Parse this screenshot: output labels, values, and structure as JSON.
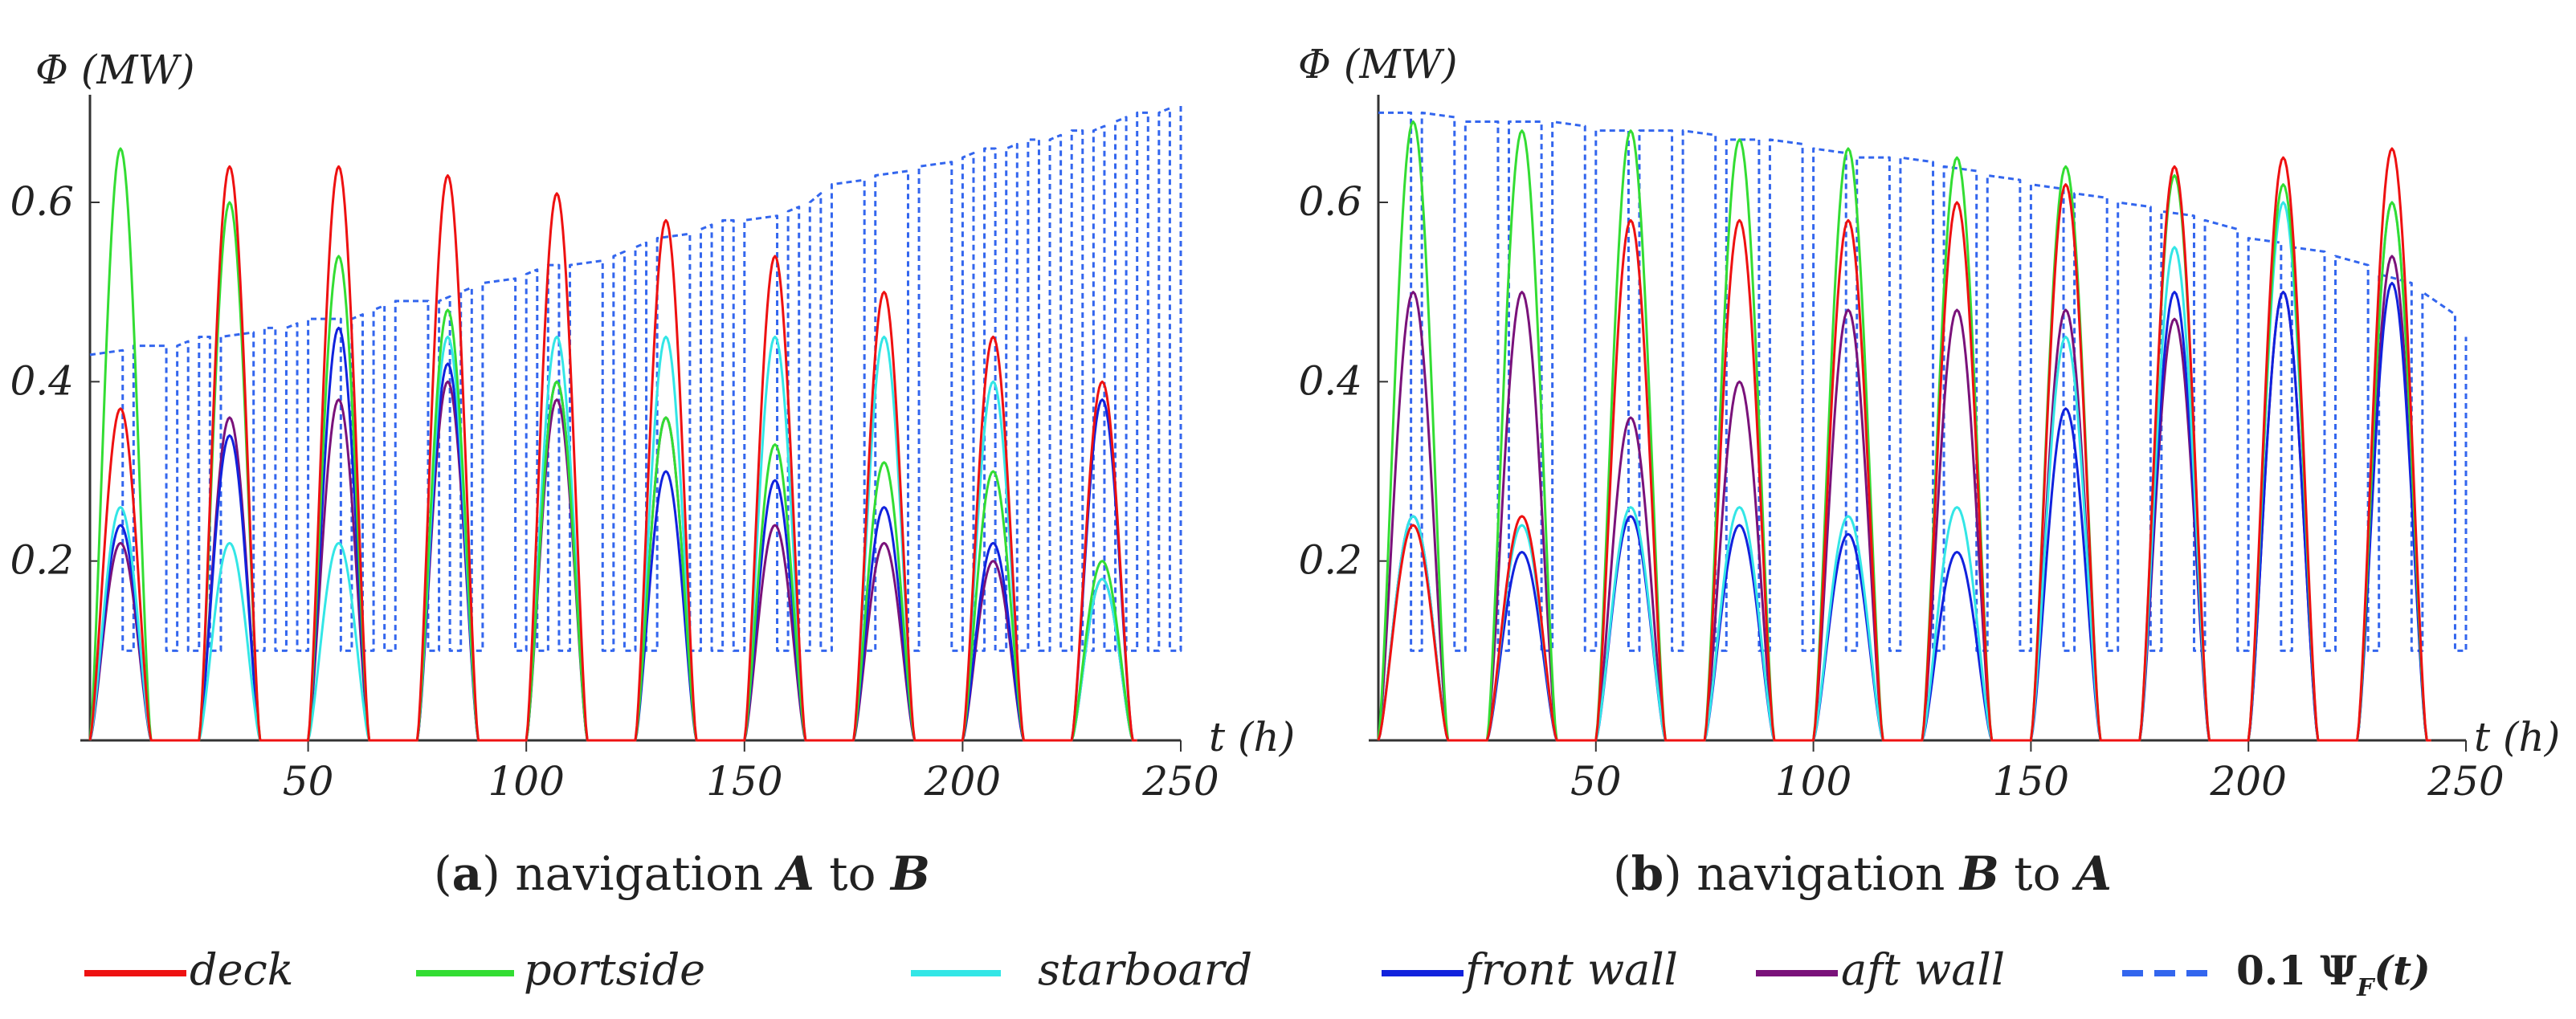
{
  "chart_data": [
    {
      "type": "line",
      "caption": {
        "letter": "a",
        "text": "navigation",
        "from": "A",
        "to_word": "to",
        "dest": "B"
      },
      "ylabel": "Φ (MW)",
      "xlabel": "t (h)",
      "xlim": [
        0,
        250
      ],
      "ylim": [
        0,
        0.72
      ],
      "xticks": [
        "50",
        "100",
        "150",
        "200",
        "250"
      ],
      "yticks": [
        "0.2",
        "0.4",
        "0.6"
      ],
      "day_starts": [
        0,
        25,
        50,
        75,
        100,
        125,
        150,
        175,
        200,
        225
      ],
      "day_length": 14,
      "peaks": {
        "deck": [
          0.37,
          0.64,
          0.64,
          0.63,
          0.61,
          0.58,
          0.54,
          0.5,
          0.45,
          0.4
        ],
        "portside": [
          0.66,
          0.6,
          0.54,
          0.48,
          0.4,
          0.36,
          0.33,
          0.31,
          0.3,
          0.2
        ],
        "starboard": [
          0.26,
          0.22,
          0.22,
          0.45,
          0.45,
          0.45,
          0.45,
          0.45,
          0.4,
          0.18
        ],
        "front wall": [
          0.24,
          0.34,
          0.46,
          0.42,
          0.4,
          0.3,
          0.29,
          0.26,
          0.22,
          0.38
        ],
        "aft wall": [
          0.22,
          0.36,
          0.38,
          0.4,
          0.38,
          0.36,
          0.24,
          0.22,
          0.2,
          0.18
        ]
      },
      "psi_steps": {
        "x": [
          0,
          10,
          20,
          25,
          30,
          40,
          45,
          50,
          60,
          65,
          70,
          80,
          85,
          90,
          100,
          105,
          110,
          120,
          125,
          130,
          140,
          145,
          150,
          160,
          165,
          170,
          180,
          190,
          200,
          205,
          210,
          215,
          220,
          225,
          230,
          235,
          240,
          245,
          250
        ],
        "y": [
          0.43,
          0.44,
          0.44,
          0.45,
          0.45,
          0.46,
          0.46,
          0.47,
          0.47,
          0.48,
          0.49,
          0.49,
          0.5,
          0.51,
          0.52,
          0.53,
          0.53,
          0.54,
          0.55,
          0.56,
          0.57,
          0.58,
          0.58,
          0.59,
          0.6,
          0.62,
          0.63,
          0.64,
          0.65,
          0.66,
          0.66,
          0.67,
          0.67,
          0.68,
          0.68,
          0.69,
          0.7,
          0.7,
          0.71
        ],
        "low": 0.1
      }
    },
    {
      "type": "line",
      "caption": {
        "letter": "b",
        "text": "navigation",
        "from": "B",
        "to_word": "to",
        "dest": "A"
      },
      "ylabel": "Φ (MW)",
      "xlabel": "t (h)",
      "xlim": [
        0,
        250
      ],
      "ylim": [
        0,
        0.72
      ],
      "xticks": [
        "50",
        "100",
        "150",
        "200",
        "250"
      ],
      "yticks": [
        "0.2",
        "0.4",
        "0.6"
      ],
      "day_starts": [
        0,
        25,
        50,
        75,
        100,
        125,
        150,
        175,
        200,
        225
      ],
      "day_length": 16,
      "peaks": {
        "deck": [
          0.24,
          0.25,
          0.58,
          0.58,
          0.58,
          0.6,
          0.62,
          0.64,
          0.65,
          0.66
        ],
        "portside": [
          0.69,
          0.68,
          0.68,
          0.67,
          0.66,
          0.65,
          0.64,
          0.63,
          0.62,
          0.6
        ],
        "starboard": [
          0.25,
          0.24,
          0.26,
          0.26,
          0.25,
          0.26,
          0.45,
          0.55,
          0.6,
          0.6
        ],
        "front wall": [
          0.25,
          0.21,
          0.25,
          0.24,
          0.23,
          0.21,
          0.37,
          0.5,
          0.5,
          0.51
        ],
        "aft wall": [
          0.5,
          0.5,
          0.36,
          0.4,
          0.48,
          0.48,
          0.48,
          0.47,
          0.5,
          0.54
        ]
      },
      "psi_steps": {
        "x": [
          0,
          10,
          20,
          30,
          40,
          50,
          60,
          70,
          80,
          90,
          100,
          110,
          120,
          130,
          140,
          150,
          160,
          170,
          180,
          190,
          200,
          210,
          220,
          230,
          240,
          250
        ],
        "y": [
          0.7,
          0.7,
          0.69,
          0.69,
          0.69,
          0.68,
          0.68,
          0.68,
          0.67,
          0.67,
          0.66,
          0.65,
          0.65,
          0.64,
          0.63,
          0.62,
          0.61,
          0.6,
          0.59,
          0.58,
          0.56,
          0.55,
          0.54,
          0.52,
          0.5,
          0.45
        ],
        "low": 0.1
      }
    }
  ],
  "legend": [
    {
      "name": "deck",
      "color": "#ee1111",
      "style": "solid"
    },
    {
      "name": "portside",
      "color": "#33dd33",
      "style": "solid"
    },
    {
      "name": "starboard",
      "color": "#33e6e6",
      "style": "solid"
    },
    {
      "name": "front wall",
      "color": "#1122dd",
      "style": "solid"
    },
    {
      "name": "aft wall",
      "color": "#7a127a",
      "style": "solid"
    },
    {
      "name": "0.1 Ψ",
      "sub": "F",
      "arg": "(t)",
      "color": "#3366ee",
      "style": "dashed"
    }
  ]
}
